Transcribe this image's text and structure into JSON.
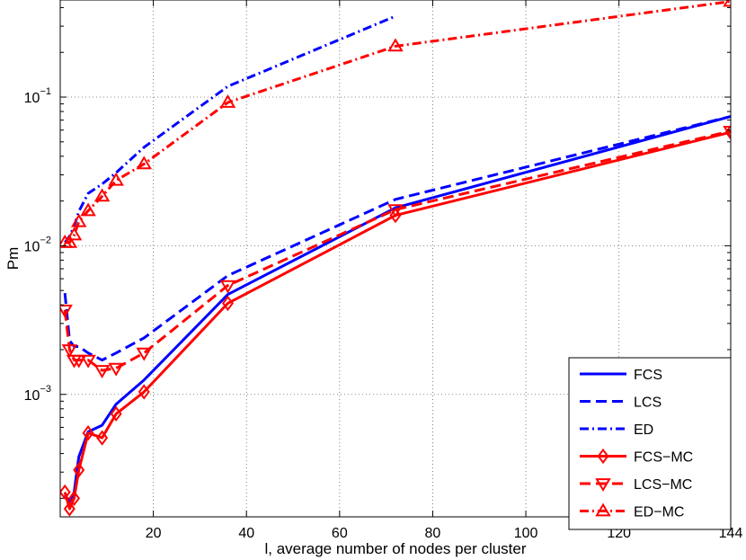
{
  "chart_data": {
    "type": "line",
    "xlabel": "l, average number of nodes per cluster",
    "ylabel": "Pm",
    "yscale": "log",
    "xlim": [
      0,
      144
    ],
    "ylim": [
      0.00015,
      0.45
    ],
    "grid": true,
    "legend_position": "bottom-right",
    "x_ticks": [
      20,
      40,
      60,
      80,
      100,
      120,
      144
    ],
    "x_tick_labels": [
      "20",
      "40",
      "60",
      "80",
      "100",
      "120",
      "144"
    ],
    "y_ticks": [
      0.001,
      0.01,
      0.1
    ],
    "y_tick_labels": [
      {
        "base": "10",
        "exp": "−3"
      },
      {
        "base": "10",
        "exp": "−2"
      },
      {
        "base": "10",
        "exp": "−1"
      }
    ],
    "series": [
      {
        "name": "FCS",
        "color": "#0000ff",
        "dash": "solid",
        "marker": "none",
        "x": [
          1,
          2,
          3,
          4,
          6,
          9,
          12,
          18,
          36,
          72,
          144
        ],
        "y": [
          0.00021,
          0.00019,
          0.00022,
          0.00038,
          0.00056,
          0.00062,
          0.00086,
          0.00125,
          0.0047,
          0.018,
          0.074
        ]
      },
      {
        "name": "LCS",
        "color": "#0000ff",
        "dash": "dashed",
        "marker": "none",
        "x": [
          1,
          2,
          3,
          4,
          6,
          9,
          12,
          18,
          36,
          72,
          144
        ],
        "y": [
          0.0048,
          0.0023,
          0.0021,
          0.0021,
          0.0019,
          0.0017,
          0.0019,
          0.0024,
          0.0063,
          0.0205,
          0.074
        ]
      },
      {
        "name": "ED",
        "color": "#0000ff",
        "dash": "dashdot",
        "marker": "none",
        "x": [
          1,
          2,
          3,
          4,
          6,
          9,
          12,
          18,
          36,
          72
        ],
        "y": [
          0.0105,
          0.0116,
          0.0135,
          0.017,
          0.0225,
          0.026,
          0.031,
          0.046,
          0.118,
          0.35
        ]
      },
      {
        "name": "FCS−MC",
        "color": "#ff0000",
        "dash": "solid",
        "marker": "diamond",
        "x": [
          1,
          2,
          3,
          4,
          6,
          9,
          12,
          18,
          36,
          72,
          144
        ],
        "y": [
          0.00022,
          0.00017,
          0.0002,
          0.00031,
          0.00055,
          0.00051,
          0.00074,
          0.00104,
          0.0041,
          0.016,
          0.058
        ]
      },
      {
        "name": "LCS−MC",
        "color": "#ff0000",
        "dash": "dashed",
        "marker": "triangle-down",
        "x": [
          1,
          2,
          3,
          4,
          6,
          9,
          12,
          18,
          36,
          72,
          144
        ],
        "y": [
          0.0037,
          0.002,
          0.0017,
          0.0017,
          0.0017,
          0.00145,
          0.0015,
          0.0019,
          0.0054,
          0.0175,
          0.059
        ]
      },
      {
        "name": "ED−MC",
        "color": "#ff0000",
        "dash": "dashdot",
        "marker": "triangle-up",
        "x": [
          1,
          2,
          3,
          4,
          6,
          9,
          12,
          18,
          36,
          72,
          144
        ],
        "y": [
          0.0105,
          0.0105,
          0.0118,
          0.0145,
          0.0172,
          0.0215,
          0.0275,
          0.0355,
          0.092,
          0.22,
          0.44
        ]
      }
    ]
  }
}
